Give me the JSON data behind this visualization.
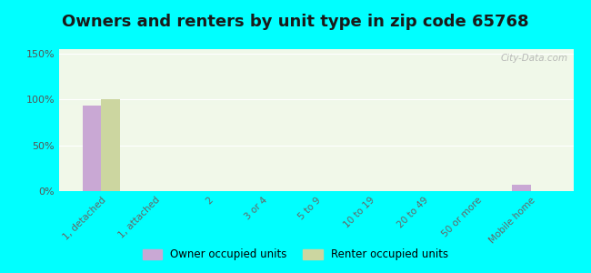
{
  "title": "Owners and renters by unit type in zip code 65768",
  "categories": [
    "1, detached",
    "1, attached",
    "2",
    "3 or 4",
    "5 to 9",
    "10 to 19",
    "20 to 49",
    "50 or more",
    "Mobile home"
  ],
  "owner_values": [
    93,
    0,
    0,
    0,
    0,
    0,
    0,
    0,
    7
  ],
  "renter_values": [
    100,
    0,
    0,
    0,
    0,
    0,
    0,
    0,
    0
  ],
  "owner_color": "#c9a8d4",
  "renter_color": "#ccd6a0",
  "yticks": [
    0,
    50,
    100,
    150
  ],
  "ytick_labels": [
    "0%",
    "50%",
    "100%",
    "150%"
  ],
  "ylim": [
    0,
    155
  ],
  "plot_bg_top": "#d8edcc",
  "plot_bg_bottom": "#f0f8e8",
  "outer_background": "#00ffff",
  "title_fontsize": 13,
  "bar_width": 0.35,
  "watermark": "City-Data.com",
  "legend_owner": "Owner occupied units",
  "legend_renter": "Renter occupied units"
}
